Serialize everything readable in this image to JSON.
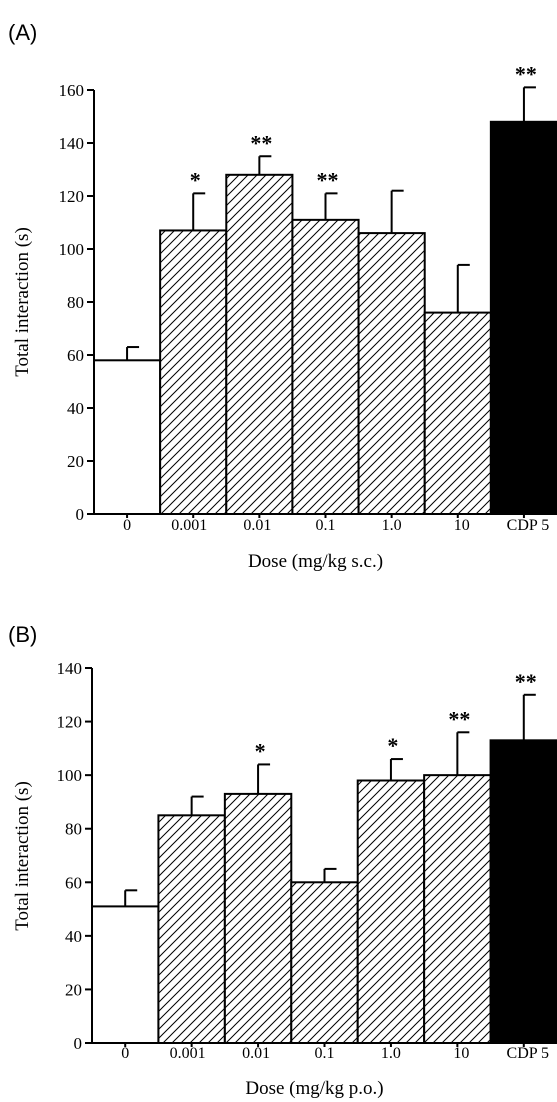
{
  "chart_data": [
    {
      "panel": "(A)",
      "type": "bar",
      "categories": [
        "0",
        "0.001",
        "0.01",
        "0.1",
        "1.0",
        "10",
        "CDP 5"
      ],
      "values": [
        58,
        107,
        128,
        111,
        106,
        76,
        148
      ],
      "errors": [
        5,
        14,
        7,
        10,
        16,
        18,
        13
      ],
      "significance": [
        "",
        "*",
        "**",
        "**",
        "",
        "",
        "**"
      ],
      "fills": [
        "white",
        "hatched",
        "hatched",
        "hatched",
        "hatched",
        "hatched",
        "black"
      ],
      "xlabel": "Dose (mg/kg s.c.)",
      "ylabel": "Total interaction (s)",
      "ylim": [
        0,
        160
      ],
      "yticks": [
        0,
        20,
        40,
        60,
        80,
        100,
        120,
        140,
        160
      ]
    },
    {
      "panel": "(B)",
      "type": "bar",
      "categories": [
        "0",
        "0.001",
        "0.01",
        "0.1",
        "1.0",
        "10",
        "CDP 5"
      ],
      "values": [
        51,
        85,
        93,
        60,
        98,
        100,
        113
      ],
      "errors": [
        6,
        7,
        11,
        5,
        8,
        16,
        17
      ],
      "significance": [
        "",
        "",
        "*",
        "",
        "*",
        "**",
        "**"
      ],
      "fills": [
        "white",
        "hatched",
        "hatched",
        "hatched",
        "hatched",
        "hatched",
        "black"
      ],
      "xlabel": "Dose (mg/kg p.o.)",
      "ylabel": "Total interaction (s)",
      "ylim": [
        0,
        140
      ],
      "yticks": [
        0,
        20,
        40,
        60,
        80,
        100,
        120,
        140
      ]
    }
  ]
}
